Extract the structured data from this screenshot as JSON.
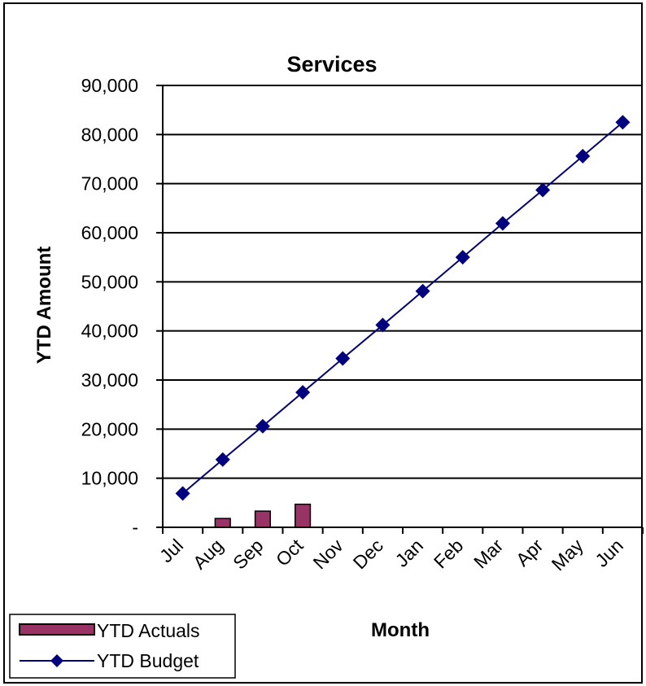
{
  "chart_data": {
    "type": "bar+line",
    "title": "Services",
    "xlabel": "Month",
    "ylabel": "YTD Amount",
    "categories": [
      "Jul",
      "Aug",
      "Sep",
      "Oct",
      "Nov",
      "Dec",
      "Jan",
      "Feb",
      "Mar",
      "Apr",
      "May",
      "Jun"
    ],
    "ylim": [
      0,
      90000
    ],
    "ytick_values": [
      0,
      10000,
      20000,
      30000,
      40000,
      50000,
      60000,
      70000,
      80000,
      90000
    ],
    "ytick_labels": [
      "-",
      "10,000",
      "20,000",
      "30,000",
      "40,000",
      "50,000",
      "60,000",
      "70,000",
      "80,000",
      "90,000"
    ],
    "grid": true,
    "legend_position": "bottom-left",
    "series": [
      {
        "name": "YTD Actuals",
        "kind": "bar",
        "color": "#993366",
        "values": [
          0,
          1800,
          3300,
          4700,
          null,
          null,
          null,
          null,
          null,
          null,
          null,
          null
        ]
      },
      {
        "name": "YTD Budget",
        "kind": "line",
        "marker": "diamond",
        "color": "#000080",
        "values": [
          6900,
          13800,
          20600,
          27500,
          34400,
          41200,
          48100,
          55000,
          61900,
          68700,
          75600,
          82500
        ]
      }
    ]
  }
}
